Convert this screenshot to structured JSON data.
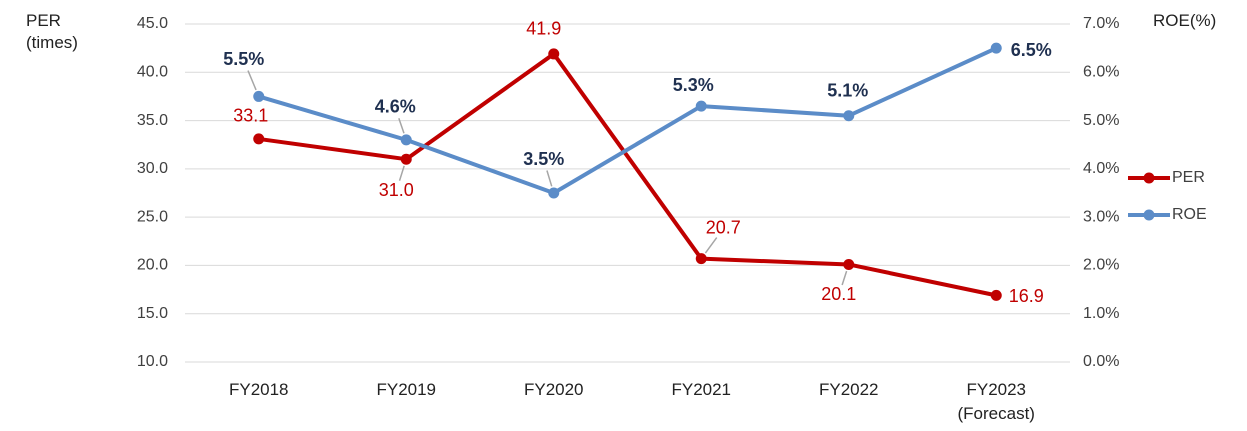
{
  "chart_data": {
    "type": "line",
    "y_label": "PER\n(times)",
    "y2_label": "ROE(%)",
    "categories": [
      "FY2018",
      "FY2019",
      "FY2020",
      "FY2021",
      "FY2022",
      "FY2023\n(Forecast)"
    ],
    "series": [
      {
        "name": "PER",
        "color": "#c00000",
        "values": [
          33.1,
          31.0,
          41.9,
          20.7,
          20.1,
          16.9
        ],
        "value_labels": [
          "33.1",
          "31.0",
          "41.9",
          "20.7",
          "20.1",
          "16.9"
        ]
      },
      {
        "name": "ROE",
        "color": "#5b8cc8",
        "axis": "y2",
        "values": [
          5.5,
          4.6,
          3.5,
          5.3,
          5.1,
          6.5
        ],
        "value_labels": [
          "5.5%",
          "4.6%",
          "3.5%",
          "5.3%",
          "5.1%",
          "6.5%"
        ]
      }
    ],
    "ylim": [
      10,
      45
    ],
    "yticks": [
      {
        "value": 10,
        "label": "10.0"
      },
      {
        "value": 15,
        "label": "15.0"
      },
      {
        "value": 20,
        "label": "20.0"
      },
      {
        "value": 25,
        "label": "25.0"
      },
      {
        "value": 30,
        "label": "30.0"
      },
      {
        "value": 35,
        "label": "35.0"
      },
      {
        "value": 40,
        "label": "40.0"
      },
      {
        "value": 45,
        "label": "45.0"
      }
    ],
    "y2lim": [
      0,
      7
    ],
    "y2ticks": [
      {
        "value": 0,
        "label": "0.0%"
      },
      {
        "value": 1,
        "label": "1.0%"
      },
      {
        "value": 2,
        "label": "2.0%"
      },
      {
        "value": 3,
        "label": "3.0%"
      },
      {
        "value": 4,
        "label": "4.0%"
      },
      {
        "value": 5,
        "label": "5.0%"
      },
      {
        "value": 6,
        "label": "6.0%"
      },
      {
        "value": 7,
        "label": "7.0%"
      }
    ],
    "grid": true,
    "legend": "right"
  }
}
